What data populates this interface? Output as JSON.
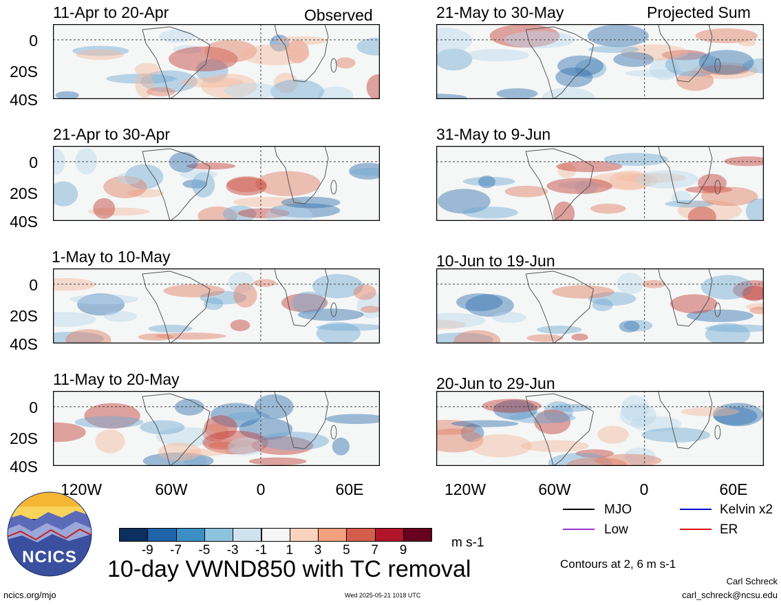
{
  "panels_left": [
    {
      "title": "11-Apr to 20-Apr",
      "tag": "Observed"
    },
    {
      "title": "21-Apr to 30-Apr",
      "tag": ""
    },
    {
      "title": "1-May to 10-May",
      "tag": ""
    },
    {
      "title": "11-May to 20-May",
      "tag": ""
    }
  ],
  "panels_right": [
    {
      "title": "21-May to 30-May",
      "tag": "Projected Sum"
    },
    {
      "title": "31-May to 9-Jun",
      "tag": ""
    },
    {
      "title": "10-Jun to 19-Jun",
      "tag": ""
    },
    {
      "title": "20-Jun to 29-Jun",
      "tag": ""
    }
  ],
  "lat_labels": [
    "0",
    "20S",
    "40S"
  ],
  "lon_labels_left": [
    "120W",
    "60W",
    "0",
    "60E"
  ],
  "lon_labels_right": [
    "120W",
    "60W",
    "0",
    "60E"
  ],
  "colorbar": {
    "colors": [
      "#0b2f5e",
      "#1f63a8",
      "#3c8fc4",
      "#8ec3de",
      "#cfe3ef",
      "#f6f6f6",
      "#fbd2bd",
      "#f2a07e",
      "#d45e4a",
      "#b0152a",
      "#67001f"
    ],
    "labels": [
      "-9",
      "-7",
      "-5",
      "-3",
      "-1",
      "1",
      "3",
      "5",
      "7",
      "9"
    ],
    "units": "m s-1"
  },
  "main_title": "10-day VWND850 with TC removal",
  "legend": {
    "mjo": {
      "label": "MJO",
      "color": "#000000"
    },
    "kelvin": {
      "label": "Kelvin x2",
      "color": "#0000cc"
    },
    "low": {
      "label": "Low",
      "color": "#9933cc"
    },
    "er": {
      "label": "ER",
      "color": "#dd1111"
    },
    "contours_note": "Contours at 2, 6 m s-1"
  },
  "logo": {
    "text": "NCICS"
  },
  "footer": {
    "left": "ncics.org/mjo",
    "center": "Wed 2025-05-21 1018 UTC",
    "author": "Carl Schreck",
    "email": "carl_schreck@ncsu.edu"
  }
}
